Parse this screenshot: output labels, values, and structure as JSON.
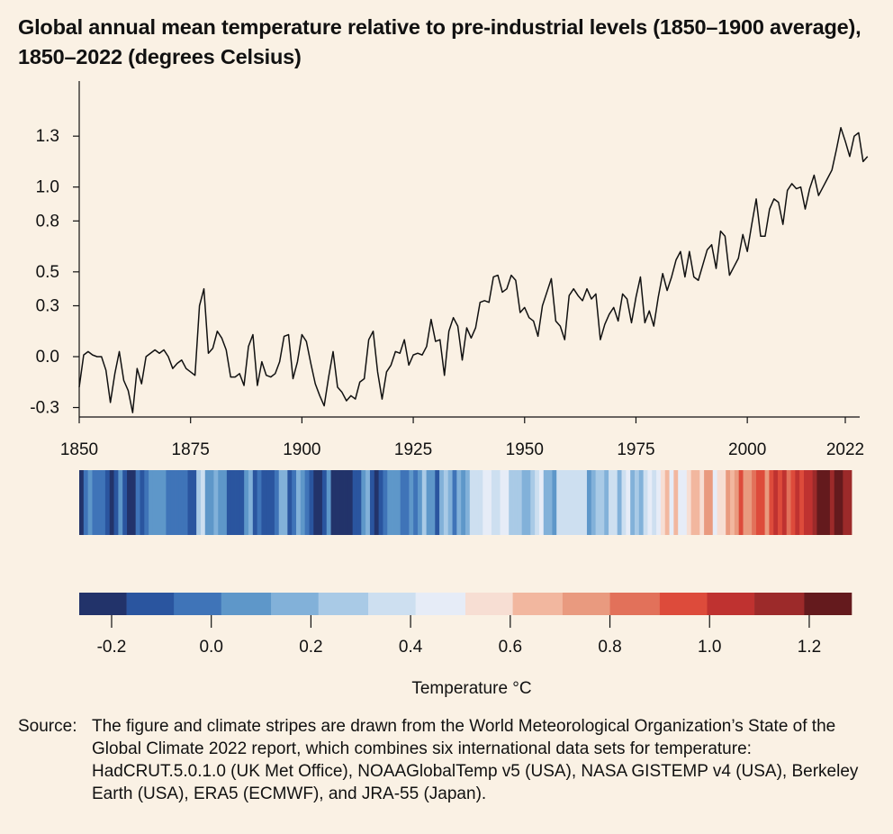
{
  "chart_data": [
    {
      "type": "line",
      "title": "Global annual mean temperature relative to pre-industrial levels (1850–1900 average), 1850–2022 (degrees Celsius)",
      "xlabel": "",
      "ylabel": "",
      "xlim": [
        1850,
        2023
      ],
      "ylim": [
        -0.35,
        1.37
      ],
      "x_ticks": [
        1850,
        1875,
        1900,
        1925,
        1950,
        1975,
        2000,
        2022
      ],
      "x_tick_labels": [
        "1850",
        "1875",
        "1900",
        "1925",
        "1950",
        "1975",
        "2000",
        "2022"
      ],
      "y_ticks": [
        -0.3,
        0.0,
        0.3,
        0.5,
        0.8,
        1.0,
        1.3
      ],
      "y_tick_labels": [
        "-0.3",
        "0.0",
        "0.3",
        "0.5",
        "0.8",
        "1.0",
        "1.3"
      ],
      "grid": false,
      "series": [
        {
          "x_start": 1850,
          "values": [
            -0.18,
            0.01,
            0.03,
            0.01,
            0.0,
            0.0,
            -0.08,
            -0.27,
            -0.1,
            0.03,
            -0.14,
            -0.2,
            -0.33,
            -0.07,
            -0.16,
            0.0,
            0.02,
            0.04,
            0.02,
            0.04,
            0.0,
            -0.07,
            -0.04,
            -0.02,
            -0.07,
            -0.09,
            -0.11,
            0.3,
            0.4,
            0.02,
            0.05,
            0.15,
            0.11,
            0.04,
            -0.12,
            -0.12,
            -0.1,
            -0.17,
            0.06,
            0.13,
            -0.17,
            -0.03,
            -0.11,
            -0.12,
            -0.1,
            -0.03,
            0.12,
            0.13,
            -0.13,
            -0.03,
            0.13,
            0.09,
            -0.04,
            -0.16,
            -0.23,
            -0.29,
            -0.12,
            0.03,
            -0.18,
            -0.21,
            -0.26,
            -0.23,
            -0.25,
            -0.15,
            -0.13,
            0.1,
            0.15,
            -0.09,
            -0.25,
            -0.09,
            -0.05,
            0.03,
            0.02,
            0.1,
            -0.05,
            0.01,
            0.02,
            0.01,
            0.06,
            0.22,
            0.09,
            0.1,
            -0.11,
            0.15,
            0.23,
            0.18,
            -0.02,
            0.17,
            0.11,
            0.17,
            0.32,
            0.33,
            0.32,
            0.47,
            0.48,
            0.38,
            0.4,
            0.48,
            0.45,
            0.26,
            0.29,
            0.23,
            0.21,
            0.12,
            0.3,
            0.38,
            0.46,
            0.21,
            0.18,
            0.1,
            0.36,
            0.4,
            0.36,
            0.33,
            0.4,
            0.34,
            0.37,
            0.1,
            0.19,
            0.25,
            0.29,
            0.21,
            0.37,
            0.34,
            0.2,
            0.35,
            0.47,
            0.2,
            0.27,
            0.18,
            0.35,
            0.49,
            0.39,
            0.47,
            0.57,
            0.62,
            0.47,
            0.62,
            0.47,
            0.45,
            0.54,
            0.63,
            0.66,
            0.52,
            0.74,
            0.71,
            0.48,
            0.53,
            0.58,
            0.72,
            0.62,
            0.78,
            0.93,
            0.71,
            0.71,
            0.87,
            0.93,
            0.91,
            0.78,
            0.98,
            1.02,
            0.99,
            1.0,
            0.87,
            0.99,
            1.07,
            0.95,
            1.0,
            1.05,
            1.1,
            1.22,
            1.35,
            1.27,
            1.18,
            1.3,
            1.32,
            1.15,
            1.18
          ]
        }
      ]
    },
    {
      "type": "heatmap",
      "title": "",
      "x_start": 1850,
      "x_end": 2022,
      "values_source": "same annual anomalies as line series"
    },
    {
      "type": "bar",
      "title": "",
      "xlabel": "Temperature °C",
      "x_tick_labels": [
        "-0.2",
        "0.0",
        "0.2",
        "0.4",
        "0.6",
        "0.8",
        "1.0",
        "1.2"
      ],
      "x_ticks": [
        -0.2,
        0.0,
        0.2,
        0.4,
        0.6,
        0.8,
        1.0,
        1.2
      ],
      "xlim": [
        -0.265,
        1.285
      ],
      "bins": [
        {
          "from": -0.265,
          "to": -0.17,
          "color": "#22336a"
        },
        {
          "from": -0.17,
          "to": -0.075,
          "color": "#2a559f"
        },
        {
          "from": -0.075,
          "to": 0.02,
          "color": "#3f74b8"
        },
        {
          "from": 0.02,
          "to": 0.12,
          "color": "#5e97c9"
        },
        {
          "from": 0.12,
          "to": 0.215,
          "color": "#82b1d9"
        },
        {
          "from": 0.215,
          "to": 0.315,
          "color": "#a9cae6"
        },
        {
          "from": 0.315,
          "to": 0.41,
          "color": "#cddff0"
        },
        {
          "from": 0.41,
          "to": 0.51,
          "color": "#e6ecf7"
        },
        {
          "from": 0.51,
          "to": 0.605,
          "color": "#f7ded3"
        },
        {
          "from": 0.605,
          "to": 0.705,
          "color": "#f2b79f"
        },
        {
          "from": 0.705,
          "to": 0.8,
          "color": "#e99a7f"
        },
        {
          "from": 0.8,
          "to": 0.9,
          "color": "#e2715a"
        },
        {
          "from": 0.9,
          "to": 0.995,
          "color": "#dd4b3b"
        },
        {
          "from": 0.995,
          "to": 1.09,
          "color": "#bf3230"
        },
        {
          "from": 1.09,
          "to": 1.19,
          "color": "#9c2a2a"
        },
        {
          "from": 1.19,
          "to": 1.285,
          "color": "#641a1d"
        }
      ]
    }
  ],
  "source": {
    "label": "Source:",
    "text": "The figure and climate stripes are drawn from the World Meteorological Organization’s State of the Global Climate 2022 report, which combines six international data sets for temperature: HadCRUT.5.0.1.0 (UK Met Office), NOAAGlobalTemp v5 (USA), NASA GISTEMP v4 (USA), Berkeley Earth (USA), ERA5 (ECMWF), and JRA-55 (Japan)."
  }
}
